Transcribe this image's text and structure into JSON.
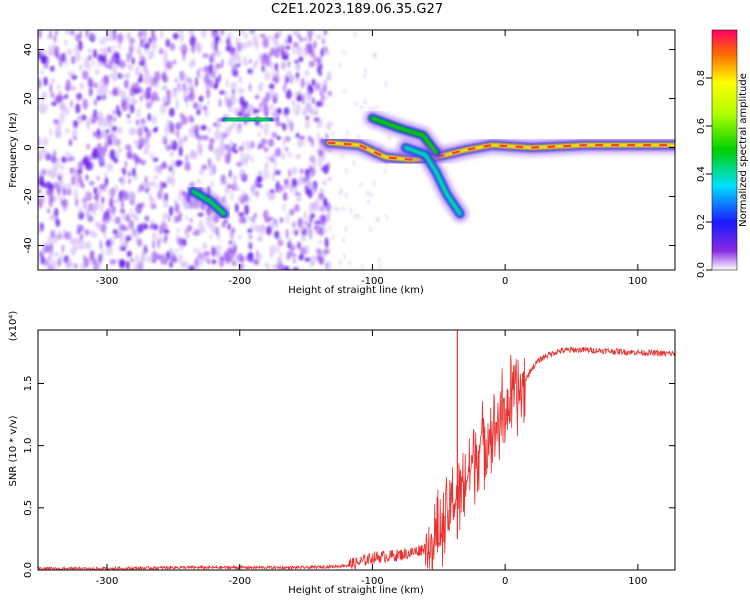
{
  "title": "C2E1.2023.189.06.35.G27",
  "chart_data": [
    {
      "type": "heatmap",
      "xlabel": "Height of straight line (km)",
      "ylabel": "Frequency (Hz)",
      "xlim": [
        -352,
        128
      ],
      "ylim": [
        -50,
        48
      ],
      "xticks": [
        -300,
        -200,
        -100,
        0,
        100
      ],
      "yticks": [
        -40,
        -20,
        0,
        20,
        40
      ],
      "colorbar": {
        "label": "Normalized spectral amplitude",
        "range": [
          0.0,
          1.0
        ],
        "ticks": [
          "0.0",
          "0.2",
          "0.4",
          "0.6",
          "0.8"
        ],
        "tick_values": [
          0.0,
          0.2,
          0.4,
          0.6,
          0.8
        ]
      },
      "features": [
        {
          "type": "noise_region",
          "x_range": [
            -352,
            -132
          ],
          "y_range": [
            -50,
            48
          ],
          "level": 0.15
        },
        {
          "type": "ridge",
          "points": [
            [
              -133,
              2
            ],
            [
              -110,
              1
            ],
            [
              -90,
              -4
            ],
            [
              -70,
              -5
            ],
            [
              -55,
              -4
            ],
            [
              -45,
              -3
            ],
            [
              -30,
              -1
            ],
            [
              -10,
              1
            ],
            [
              20,
              0
            ],
            [
              60,
              1
            ],
            [
              100,
              1
            ],
            [
              128,
              1
            ]
          ],
          "level": 0.8
        },
        {
          "type": "ridge",
          "points": [
            [
              -100,
              12
            ],
            [
              -80,
              8
            ],
            [
              -62,
              5
            ],
            [
              -52,
              -2
            ]
          ],
          "level": 0.5
        },
        {
          "type": "ridge",
          "points": [
            [
              -75,
              0
            ],
            [
              -60,
              -3
            ],
            [
              -52,
              -10
            ],
            [
              -44,
              -19
            ],
            [
              -34,
              -27
            ]
          ],
          "level": 0.4
        },
        {
          "type": "blob",
          "points": [
            [
              -210,
              11
            ],
            [
              -190,
              12
            ],
            [
              -178,
              11
            ]
          ],
          "level": 0.45
        },
        {
          "type": "blob",
          "points": [
            [
              -235,
              -18
            ],
            [
              -222,
              -22
            ],
            [
              -212,
              -27
            ]
          ],
          "level": 0.45
        }
      ]
    },
    {
      "type": "line",
      "xlabel": "Height of straight line (km)",
      "ylabel": "SNR (10 * v/v)",
      "yscale_label": "(x10⁴)",
      "xlim": [
        -352,
        128
      ],
      "ylim": [
        0,
        1.93
      ],
      "xticks": [
        -300,
        -200,
        -100,
        0,
        100
      ],
      "yticks": [
        0.0,
        0.5,
        1.0,
        1.5
      ],
      "color": "#e8312f",
      "series": [
        {
          "x": [
            -352,
            -300,
            -250,
            -200,
            -150,
            -125,
            -110,
            -100,
            -90,
            -80,
            -70,
            -60,
            -55,
            -50,
            -45,
            -40,
            -35,
            -30,
            -25,
            -20,
            -15,
            -10,
            -5,
            0,
            5,
            10,
            15,
            20,
            25,
            30,
            40,
            50,
            60,
            80,
            100,
            120,
            128
          ],
          "values": [
            0.01,
            0.01,
            0.02,
            0.02,
            0.02,
            0.03,
            0.06,
            0.1,
            0.11,
            0.12,
            0.14,
            0.18,
            0.22,
            0.28,
            0.38,
            0.55,
            0.62,
            0.72,
            0.86,
            0.98,
            1.06,
            1.12,
            1.2,
            1.3,
            1.36,
            1.42,
            1.52,
            1.62,
            1.68,
            1.72,
            1.76,
            1.77,
            1.77,
            1.76,
            1.75,
            1.74,
            1.74
          ]
        }
      ]
    }
  ]
}
